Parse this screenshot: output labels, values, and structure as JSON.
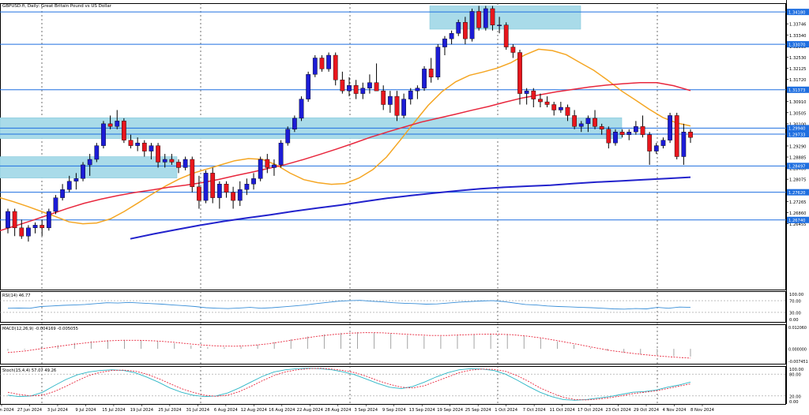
{
  "chart_data": {
    "type": "candlestick",
    "title": "GBPUSD.fi, Daily:  Great Britain Pound vs US Dollar",
    "price_axis": {
      "ylim": [
        1.2405,
        1.345
      ],
      "ticks": [
        "1.34180",
        "1.33746",
        "1.33340",
        "1.32935",
        "1.32530",
        "1.32125",
        "1.31720",
        "1.31315",
        "1.30910",
        "1.30505",
        "1.30100",
        "1.29695",
        "1.29290",
        "1.28885",
        "1.28480",
        "1.28075",
        "1.27670",
        "1.27265",
        "1.26860",
        "1.26455"
      ],
      "highlighted_labels": [
        {
          "value": 1.3418,
          "label": "1.34180"
        },
        {
          "value": 1.33,
          "label": "1.33070"
        },
        {
          "value": 1.3134,
          "label": "1.31373"
        },
        {
          "value": 1.2994,
          "label": "1.29940"
        },
        {
          "value": 1.2972,
          "label": "1.29733"
        },
        {
          "value": 1.2856,
          "label": "1.28497"
        },
        {
          "value": 1.276,
          "label": "1.27620"
        },
        {
          "value": 1.2659,
          "label": "1.26740"
        }
      ]
    },
    "x_labels": [
      "21 Jun 2024",
      "27 Jun 2024",
      "3 Jul 2024",
      "9 Jul 2024",
      "15 Jul 2024",
      "19 Jul 2024",
      "25 Jul 2024",
      "31 Jul 2024",
      "6 Aug 2024",
      "12 Aug 2024",
      "16 Aug 2024",
      "22 Aug 2024",
      "28 Aug 2024",
      "3 Sep 2024",
      "9 Sep 2024",
      "13 Sep 2024",
      "19 Sep 2024",
      "25 Sep 2024",
      "1 Oct 2024",
      "7 Oct 2024",
      "11 Oct 2024",
      "17 Oct 2024",
      "23 Oct 2024",
      "29 Oct 2024",
      "4 Nov 2024",
      "8 Nov 2024"
    ],
    "horizontal_lines": [
      1.3418,
      1.33,
      1.3134,
      1.2994,
      1.2972,
      1.2856,
      1.276,
      1.2659
    ],
    "zones": [
      {
        "from": 1.3355,
        "to": 1.344
      },
      {
        "from": 1.2956,
        "to": 1.3032
      },
      {
        "from": 1.2812,
        "to": 1.289
      }
    ],
    "candles": [
      [
        1.263,
        1.27,
        1.261,
        1.269
      ],
      [
        1.269,
        1.27,
        1.26,
        1.263
      ],
      [
        1.263,
        1.266,
        1.259,
        1.26
      ],
      [
        1.26,
        1.264,
        1.258,
        1.263
      ],
      [
        1.263,
        1.265,
        1.261,
        1.264
      ],
      [
        1.264,
        1.266,
        1.26,
        1.263
      ],
      [
        1.263,
        1.27,
        1.262,
        1.269
      ],
      [
        1.269,
        1.275,
        1.268,
        1.274
      ],
      [
        1.274,
        1.279,
        1.273,
        1.277
      ],
      [
        1.277,
        1.282,
        1.276,
        1.28
      ],
      [
        1.28,
        1.283,
        1.277,
        1.281
      ],
      [
        1.281,
        1.287,
        1.28,
        1.286
      ],
      [
        1.286,
        1.29,
        1.282,
        1.288
      ],
      [
        1.288,
        1.294,
        1.287,
        1.293
      ],
      [
        1.293,
        1.302,
        1.292,
        1.301
      ],
      [
        1.301,
        1.304,
        1.299,
        1.3
      ],
      [
        1.3,
        1.306,
        1.299,
        1.302
      ],
      [
        1.302,
        1.303,
        1.294,
        1.295
      ],
      [
        1.295,
        1.297,
        1.292,
        1.293
      ],
      [
        1.293,
        1.296,
        1.291,
        1.294
      ],
      [
        1.294,
        1.295,
        1.289,
        1.291
      ],
      [
        1.291,
        1.294,
        1.288,
        1.293
      ],
      [
        1.293,
        1.294,
        1.285,
        1.287
      ],
      [
        1.287,
        1.29,
        1.285,
        1.288
      ],
      [
        1.288,
        1.29,
        1.286,
        1.287
      ],
      [
        1.287,
        1.288,
        1.283,
        1.285
      ],
      [
        1.285,
        1.289,
        1.284,
        1.288
      ],
      [
        1.288,
        1.289,
        1.276,
        1.278
      ],
      [
        1.278,
        1.282,
        1.27,
        1.273
      ],
      [
        1.273,
        1.284,
        1.272,
        1.283
      ],
      [
        1.283,
        1.285,
        1.272,
        1.274
      ],
      [
        1.274,
        1.28,
        1.27,
        1.279
      ],
      [
        1.279,
        1.28,
        1.274,
        1.276
      ],
      [
        1.276,
        1.278,
        1.27,
        1.273
      ],
      [
        1.273,
        1.28,
        1.271,
        1.277
      ],
      [
        1.277,
        1.281,
        1.275,
        1.279
      ],
      [
        1.279,
        1.283,
        1.277,
        1.281
      ],
      [
        1.281,
        1.289,
        1.28,
        1.288
      ],
      [
        1.288,
        1.29,
        1.283,
        1.285
      ],
      [
        1.285,
        1.288,
        1.282,
        1.286
      ],
      [
        1.286,
        1.295,
        1.285,
        1.294
      ],
      [
        1.294,
        1.3,
        1.293,
        1.299
      ],
      [
        1.299,
        1.304,
        1.298,
        1.303
      ],
      [
        1.303,
        1.311,
        1.302,
        1.31
      ],
      [
        1.31,
        1.32,
        1.309,
        1.319
      ],
      [
        1.319,
        1.326,
        1.318,
        1.325
      ],
      [
        1.325,
        1.326,
        1.32,
        1.321
      ],
      [
        1.321,
        1.327,
        1.32,
        1.326
      ],
      [
        1.326,
        1.327,
        1.315,
        1.317
      ],
      [
        1.317,
        1.32,
        1.312,
        1.313
      ],
      [
        1.313,
        1.318,
        1.311,
        1.315
      ],
      [
        1.315,
        1.317,
        1.31,
        1.312
      ],
      [
        1.312,
        1.316,
        1.31,
        1.314
      ],
      [
        1.314,
        1.319,
        1.312,
        1.316
      ],
      [
        1.316,
        1.323,
        1.313,
        1.313
      ],
      [
        1.313,
        1.315,
        1.306,
        1.308
      ],
      [
        1.308,
        1.313,
        1.305,
        1.311
      ],
      [
        1.311,
        1.313,
        1.302,
        1.304
      ],
      [
        1.304,
        1.312,
        1.303,
        1.31
      ],
      [
        1.31,
        1.314,
        1.308,
        1.313
      ],
      [
        1.313,
        1.315,
        1.31,
        1.314
      ],
      [
        1.314,
        1.322,
        1.313,
        1.321
      ],
      [
        1.321,
        1.325,
        1.316,
        1.318
      ],
      [
        1.318,
        1.33,
        1.317,
        1.329
      ],
      [
        1.329,
        1.333,
        1.326,
        1.332
      ],
      [
        1.332,
        1.335,
        1.33,
        1.334
      ],
      [
        1.334,
        1.339,
        1.333,
        1.338
      ],
      [
        1.338,
        1.34,
        1.33,
        1.332
      ],
      [
        1.332,
        1.343,
        1.331,
        1.342
      ],
      [
        1.342,
        1.344,
        1.335,
        1.336
      ],
      [
        1.336,
        1.344,
        1.335,
        1.343
      ],
      [
        1.343,
        1.344,
        1.335,
        1.337
      ],
      [
        1.337,
        1.34,
        1.334,
        1.337
      ],
      [
        1.337,
        1.338,
        1.328,
        1.329
      ],
      [
        1.329,
        1.33,
        1.325,
        1.327
      ],
      [
        1.327,
        1.328,
        1.308,
        1.312
      ],
      [
        1.312,
        1.314,
        1.308,
        1.313
      ],
      [
        1.313,
        1.314,
        1.307,
        1.31
      ],
      [
        1.31,
        1.312,
        1.307,
        1.309
      ],
      [
        1.309,
        1.311,
        1.307,
        1.308
      ],
      [
        1.308,
        1.309,
        1.304,
        1.306
      ],
      [
        1.306,
        1.309,
        1.305,
        1.307
      ],
      [
        1.307,
        1.308,
        1.302,
        1.304
      ],
      [
        1.304,
        1.306,
        1.299,
        1.3
      ],
      [
        1.3,
        1.302,
        1.298,
        1.301
      ],
      [
        1.301,
        1.304,
        1.298,
        1.303
      ],
      [
        1.303,
        1.306,
        1.299,
        1.3
      ],
      [
        1.3,
        1.301,
        1.297,
        1.299
      ],
      [
        1.299,
        1.3,
        1.292,
        1.294
      ],
      [
        1.294,
        1.299,
        1.293,
        1.298
      ],
      [
        1.298,
        1.299,
        1.296,
        1.297
      ],
      [
        1.297,
        1.299,
        1.295,
        1.298
      ],
      [
        1.298,
        1.302,
        1.297,
        1.3
      ],
      [
        1.3,
        1.304,
        1.296,
        1.297
      ],
      [
        1.297,
        1.298,
        1.286,
        1.291
      ],
      [
        1.291,
        1.294,
        1.29,
        1.293
      ],
      [
        1.293,
        1.296,
        1.292,
        1.295
      ],
      [
        1.295,
        1.305,
        1.294,
        1.304
      ],
      [
        1.304,
        1.305,
        1.288,
        1.289
      ],
      [
        1.289,
        1.301,
        1.286,
        1.298
      ],
      [
        1.298,
        1.299,
        1.294,
        1.296
      ]
    ],
    "ma_lines": [
      {
        "color": "#f5a623",
        "values": [
          1.274,
          1.2725,
          1.2708,
          1.269,
          1.2672,
          1.2652,
          1.2645,
          1.2648,
          1.2663,
          1.269,
          1.2721,
          1.2753,
          1.2783,
          1.2809,
          1.283,
          1.2845,
          1.286,
          1.2875,
          1.2883,
          1.288,
          1.286,
          1.283,
          1.2806,
          1.2795,
          1.2789,
          1.2792,
          1.2812,
          1.2843,
          1.2889,
          1.2951,
          1.3015,
          1.3077,
          1.3127,
          1.3163,
          1.3187,
          1.3199,
          1.3213,
          1.3233,
          1.3261,
          1.3282,
          1.3277,
          1.3262,
          1.3233,
          1.3205,
          1.3169,
          1.313,
          1.3097,
          1.3063,
          1.3033,
          1.3013,
          1.3002
        ]
      },
      {
        "color": "#e8273d",
        "values": [
          1.262,
          1.2639,
          1.2659,
          1.268,
          1.2701,
          1.272,
          1.2735,
          1.2748,
          1.2759,
          1.2768,
          1.2778,
          1.2786,
          1.2795,
          1.2807,
          1.2821,
          1.2834,
          1.2848,
          1.2862,
          1.2879,
          1.2898,
          1.2918,
          1.2939,
          1.2961,
          1.298,
          1.2998,
          1.3016,
          1.303,
          1.3044,
          1.3059,
          1.3073,
          1.3089,
          1.3104,
          1.3115,
          1.3126,
          1.3135,
          1.3144,
          1.3151,
          1.3156,
          1.316,
          1.316,
          1.3149,
          1.3131
        ]
      },
      {
        "color": "#2222cc",
        "values": [
          1.259,
          1.2608,
          1.2624,
          1.264,
          1.2654,
          1.2666,
          1.2678,
          1.2691,
          1.2702,
          1.2713,
          1.2726,
          1.2738,
          1.2748,
          1.2757,
          1.2765,
          1.2773,
          1.2778,
          1.2782,
          1.2786,
          1.2792,
          1.2797,
          1.2801,
          1.2806,
          1.281,
          1.2815
        ]
      }
    ],
    "rsi": {
      "label": "RSI(14) 46.77",
      "ylim": [
        0,
        100
      ],
      "ticks": [
        "100.00",
        "70.00",
        "30.00",
        "0.00"
      ],
      "values": [
        44,
        45,
        44,
        50,
        52,
        54,
        55,
        57,
        60,
        63,
        62,
        64,
        62,
        60,
        58,
        55,
        53,
        50,
        46,
        44,
        43,
        45,
        47,
        44,
        46,
        49,
        52,
        55,
        60,
        64,
        68,
        70,
        71,
        68,
        66,
        63,
        61,
        60,
        58,
        59,
        62,
        65,
        67,
        69,
        70,
        67,
        62,
        57,
        55,
        52,
        50,
        49,
        47,
        46,
        44,
        42,
        41,
        43,
        42,
        47,
        44,
        48,
        47
      ]
    },
    "macd": {
      "label": "MACD(12,26,9) -0.004169 -0.005055",
      "ylim": [
        -0.008,
        0.0132
      ],
      "ticks": [
        "0.012060",
        "0.000000",
        "-0.007451"
      ],
      "hist": [
        -0.001,
        -0.0005,
        0.0008,
        0.002,
        0.0032,
        0.0041,
        0.0047,
        0.0048,
        0.0046,
        0.004,
        0.003,
        0.0018,
        0.001,
        0.0008,
        0.0012,
        0.0022,
        0.0036,
        0.0052,
        0.0066,
        0.0078,
        0.0086,
        0.009,
        0.0088,
        0.0082,
        0.0074,
        0.0068,
        0.0068,
        0.0072,
        0.0078,
        0.0082,
        0.008,
        0.007,
        0.0056,
        0.004,
        0.0022,
        0.0006,
        -0.001,
        -0.0022,
        -0.003,
        -0.0036,
        -0.004,
        -0.0042
      ],
      "signal": [
        -0.002,
        -0.0012,
        0.0,
        0.0012,
        0.0024,
        0.0034,
        0.0042,
        0.0046,
        0.0046,
        0.0043,
        0.0037,
        0.0028,
        0.002,
        0.0015,
        0.0014,
        0.0018,
        0.0027,
        0.004,
        0.0054,
        0.0067,
        0.0077,
        0.0084,
        0.0087,
        0.0086,
        0.0081,
        0.0076,
        0.0072,
        0.0072,
        0.0075,
        0.0078,
        0.0079,
        0.0076,
        0.0068,
        0.0056,
        0.0041,
        0.0025,
        0.0008,
        -0.0008,
        -0.002,
        -0.003,
        -0.0038,
        -0.0045,
        -0.005
      ]
    },
    "stoch": {
      "label": "Stoch(15,4,4) 57.07 49.26",
      "ylim": [
        0,
        100
      ],
      "ticks": [
        "100.00",
        "80.00",
        "20.00",
        "0.00"
      ],
      "main": [
        22,
        18,
        20,
        30,
        48,
        65,
        78,
        86,
        90,
        92,
        90,
        84,
        72,
        58,
        42,
        30,
        22,
        18,
        20,
        28,
        42,
        58,
        74,
        86,
        92,
        95,
        96,
        95,
        92,
        86,
        78,
        66,
        54,
        44,
        40,
        46,
        58,
        72,
        84,
        92,
        95,
        94,
        90,
        80,
        64,
        46,
        30,
        18,
        10,
        8,
        10,
        14,
        18,
        24,
        30,
        32,
        36,
        44,
        50,
        58
      ],
      "signal": [
        30,
        24,
        20,
        22,
        32,
        46,
        62,
        76,
        85,
        90,
        91,
        88,
        80,
        68,
        54,
        40,
        30,
        22,
        19,
        22,
        32,
        46,
        62,
        76,
        86,
        92,
        95,
        96,
        94,
        90,
        84,
        74,
        62,
        52,
        44,
        42,
        48,
        60,
        72,
        84,
        91,
        94,
        93,
        88,
        76,
        60,
        42,
        28,
        16,
        10,
        9,
        11,
        15,
        20,
        26,
        30,
        34,
        40,
        47,
        53
      ]
    }
  }
}
